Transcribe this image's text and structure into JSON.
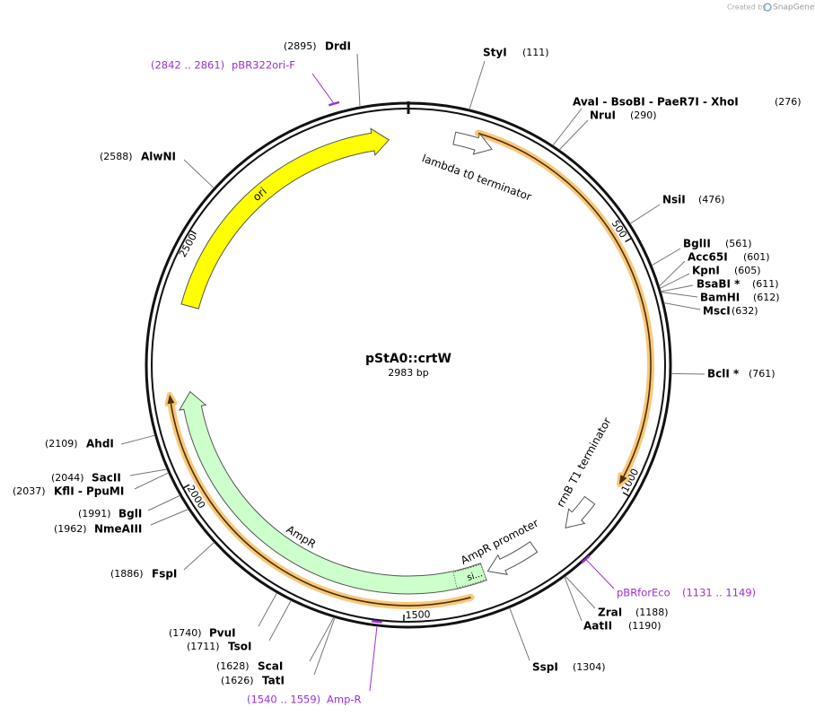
{
  "watermark": {
    "created_by": "Created by",
    "brand": "SnapGene"
  },
  "plasmid": {
    "name": "pStA0::crtW",
    "length": 2983,
    "unit": "bp"
  },
  "ticks": [
    500,
    1000,
    1500,
    2000,
    2500
  ],
  "features": [
    {
      "name": "ori",
      "start": 2362,
      "end": 2942,
      "shape": "arrow",
      "color": "#ffff00"
    },
    {
      "name": "lambda t0 terminator",
      "start": 95,
      "end": 175,
      "shape": "arrow",
      "color": "#ffffff"
    },
    {
      "start": 139,
      "end": 990,
      "shape": "line",
      "color": "#f9c77d"
    },
    {
      "name": "rrnB T1 terminator",
      "start": 1050,
      "end": 1127,
      "shape": "arrow",
      "color": "#ffffff"
    },
    {
      "name": "AmpR promoter",
      "start": 1205,
      "end": 1317,
      "shape": "arrow",
      "color": "#ffffff"
    },
    {
      "name": "AmpR",
      "start": 1326,
      "end": 2180,
      "shape": "arrow",
      "color": "#ccffcc"
    },
    {
      "name": "si...",
      "start": 1326,
      "end": 1390,
      "shape": "segment",
      "color": "#ccffcc"
    },
    {
      "start": 1367,
      "end": 2179,
      "shape": "line",
      "color": "#f9c77d"
    }
  ],
  "sites": [
    {
      "name": "DrdI",
      "position": 2895,
      "label": "(2895)"
    },
    {
      "name": "StyI",
      "position": 111,
      "label": "(111)"
    },
    {
      "name": "AvaI - BsoBI - PaeR7I - XhoI",
      "position": 276,
      "label": "(276)"
    },
    {
      "name": "NruI",
      "position": 290,
      "label": "(290)"
    },
    {
      "name": "NsiI",
      "position": 476,
      "label": "(476)"
    },
    {
      "name": "BglII",
      "position": 561,
      "label": "(561)"
    },
    {
      "name": "Acc65I",
      "position": 601,
      "label": "(601)"
    },
    {
      "name": "KpnI",
      "position": 605,
      "label": "(605)"
    },
    {
      "name": "BsaBI *",
      "position": 611,
      "label": "(611)"
    },
    {
      "name": "BamHI",
      "position": 612,
      "label": "(612)"
    },
    {
      "name": "MscI",
      "position": 632,
      "label": "(632)"
    },
    {
      "name": "BclI *",
      "position": 761,
      "label": "(761)"
    },
    {
      "name": "ZraI",
      "position": 1188,
      "label": "(1188)"
    },
    {
      "name": "AatII",
      "position": 1190,
      "label": "(1190)"
    },
    {
      "name": "SspI",
      "position": 1304,
      "label": "(1304)"
    },
    {
      "name": "ScaI",
      "position": 1628,
      "label": "(1628)"
    },
    {
      "name": "TatI",
      "position": 1626,
      "label": "(1626)"
    },
    {
      "name": "TsoI",
      "position": 1711,
      "label": "(1711)"
    },
    {
      "name": "PvuI",
      "position": 1740,
      "label": "(1740)"
    },
    {
      "name": "FspI",
      "position": 1886,
      "label": "(1886)"
    },
    {
      "name": "NmeAIII",
      "position": 1962,
      "label": "(1962)"
    },
    {
      "name": "BglI",
      "position": 1991,
      "label": "(1991)"
    },
    {
      "name": "KflI - PpuMI",
      "position": 2037,
      "label": "(2037)"
    },
    {
      "name": "SacII",
      "position": 2044,
      "label": "(2044)"
    },
    {
      "name": "AhdI",
      "position": 2109,
      "label": "(2109)"
    },
    {
      "name": "AlwNI",
      "position": 2588,
      "label": "(2588)"
    }
  ],
  "primers": [
    {
      "name": "pBR322ori-F",
      "start": 2842,
      "end": 2861,
      "label": "(2842 .. 2861)"
    },
    {
      "name": "pBRforEco",
      "start": 1131,
      "end": 1149,
      "label": "(1131 .. 1149)"
    },
    {
      "name": "Amp-R",
      "start": 1540,
      "end": 1559,
      "label": "(1540 .. 1559)"
    }
  ]
}
